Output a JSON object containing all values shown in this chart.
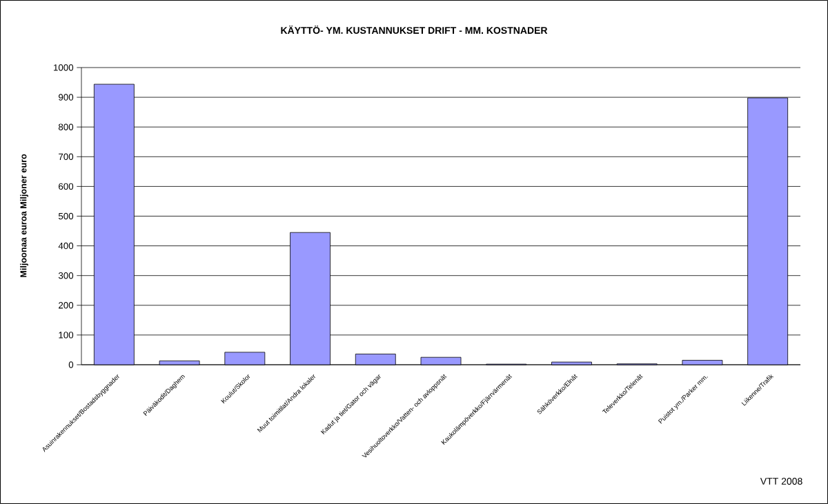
{
  "chart_data": {
    "type": "bar",
    "title": "KÄYTTÖ- YM. KUSTANNUKSET DRIFT - MM. KOSTNADER",
    "ylabel": "Miljoonaa euroa Miljoner euro",
    "categories": [
      "Asuinrakennukset/Bostadsbyggnader",
      "Päiväkodit/Daghem",
      "Koulut/Skolor",
      "Muut toimitilat/Andra lokaler",
      "Kadut ja tiet/Gator och vägar",
      "Vesihuoltoverkko/Vatten- och avloppsnät",
      "Kaukolämpöverkko/Fjärrvärmenät",
      "Sähköverkko/Elnät",
      "Televerkko/Telenät",
      "Puistot ym./Parker mm.",
      "Liikenne/Trafik"
    ],
    "values": [
      944,
      13,
      42,
      445,
      36,
      25,
      2,
      9,
      3,
      15,
      898
    ],
    "color": "#9999ff",
    "ylim": [
      0,
      1000
    ],
    "yticks": [
      0,
      100,
      200,
      300,
      400,
      500,
      600,
      700,
      800,
      900,
      1000
    ],
    "grid": "y",
    "annotations": [
      "VTT 2008"
    ]
  }
}
